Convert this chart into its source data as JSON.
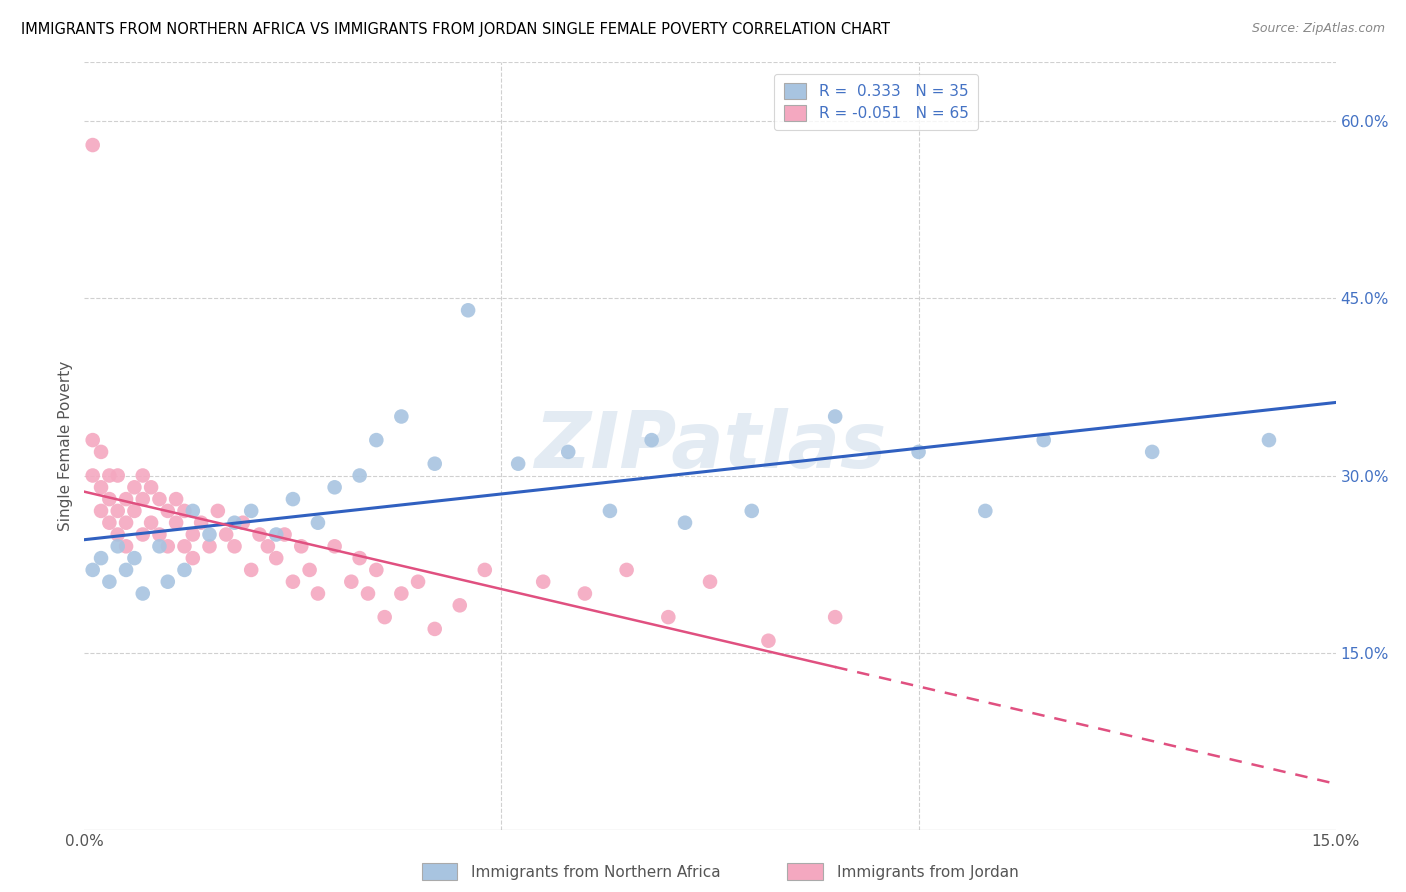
{
  "title": "IMMIGRANTS FROM NORTHERN AFRICA VS IMMIGRANTS FROM JORDAN SINGLE FEMALE POVERTY CORRELATION CHART",
  "source": "Source: ZipAtlas.com",
  "xlabel_bottom": [
    "Immigrants from Northern Africa",
    "Immigrants from Jordan"
  ],
  "ylabel": "Single Female Poverty",
  "xlim": [
    0.0,
    0.15
  ],
  "ylim": [
    0.0,
    0.65
  ],
  "y_ticks_right": [
    0.15,
    0.3,
    0.45,
    0.6
  ],
  "y_tick_labels_right": [
    "15.0%",
    "30.0%",
    "45.0%",
    "60.0%"
  ],
  "r_blue": 0.333,
  "n_blue": 35,
  "r_pink": -0.051,
  "n_pink": 65,
  "blue_color": "#a8c4e0",
  "pink_color": "#f4a8c0",
  "blue_line_color": "#3060c0",
  "pink_line_color": "#e05080",
  "watermark": "ZIPatlas",
  "blue_points_x": [
    0.001,
    0.002,
    0.003,
    0.004,
    0.005,
    0.006,
    0.007,
    0.009,
    0.01,
    0.012,
    0.013,
    0.015,
    0.018,
    0.02,
    0.023,
    0.025,
    0.028,
    0.03,
    0.033,
    0.035,
    0.038,
    0.042,
    0.046,
    0.052,
    0.058,
    0.063,
    0.068,
    0.072,
    0.08,
    0.09,
    0.1,
    0.108,
    0.115,
    0.128,
    0.142
  ],
  "blue_points_y": [
    0.22,
    0.23,
    0.21,
    0.24,
    0.22,
    0.23,
    0.2,
    0.24,
    0.21,
    0.22,
    0.27,
    0.25,
    0.26,
    0.27,
    0.25,
    0.28,
    0.26,
    0.29,
    0.3,
    0.33,
    0.35,
    0.31,
    0.44,
    0.31,
    0.32,
    0.27,
    0.33,
    0.26,
    0.27,
    0.35,
    0.32,
    0.27,
    0.33,
    0.32,
    0.33
  ],
  "pink_points_x": [
    0.001,
    0.001,
    0.001,
    0.002,
    0.002,
    0.002,
    0.003,
    0.003,
    0.003,
    0.004,
    0.004,
    0.004,
    0.005,
    0.005,
    0.005,
    0.006,
    0.006,
    0.007,
    0.007,
    0.007,
    0.008,
    0.008,
    0.009,
    0.009,
    0.01,
    0.01,
    0.011,
    0.011,
    0.012,
    0.012,
    0.013,
    0.013,
    0.014,
    0.015,
    0.016,
    0.017,
    0.018,
    0.019,
    0.02,
    0.021,
    0.022,
    0.023,
    0.024,
    0.025,
    0.026,
    0.027,
    0.028,
    0.03,
    0.032,
    0.033,
    0.034,
    0.035,
    0.036,
    0.038,
    0.04,
    0.042,
    0.045,
    0.048,
    0.055,
    0.06,
    0.065,
    0.07,
    0.075,
    0.082,
    0.09
  ],
  "pink_points_y": [
    0.58,
    0.33,
    0.3,
    0.32,
    0.29,
    0.27,
    0.3,
    0.28,
    0.26,
    0.3,
    0.27,
    0.25,
    0.28,
    0.26,
    0.24,
    0.29,
    0.27,
    0.3,
    0.28,
    0.25,
    0.29,
    0.26,
    0.28,
    0.25,
    0.27,
    0.24,
    0.28,
    0.26,
    0.27,
    0.24,
    0.25,
    0.23,
    0.26,
    0.24,
    0.27,
    0.25,
    0.24,
    0.26,
    0.22,
    0.25,
    0.24,
    0.23,
    0.25,
    0.21,
    0.24,
    0.22,
    0.2,
    0.24,
    0.21,
    0.23,
    0.2,
    0.22,
    0.18,
    0.2,
    0.21,
    0.17,
    0.19,
    0.22,
    0.21,
    0.2,
    0.22,
    0.18,
    0.21,
    0.16,
    0.18
  ]
}
